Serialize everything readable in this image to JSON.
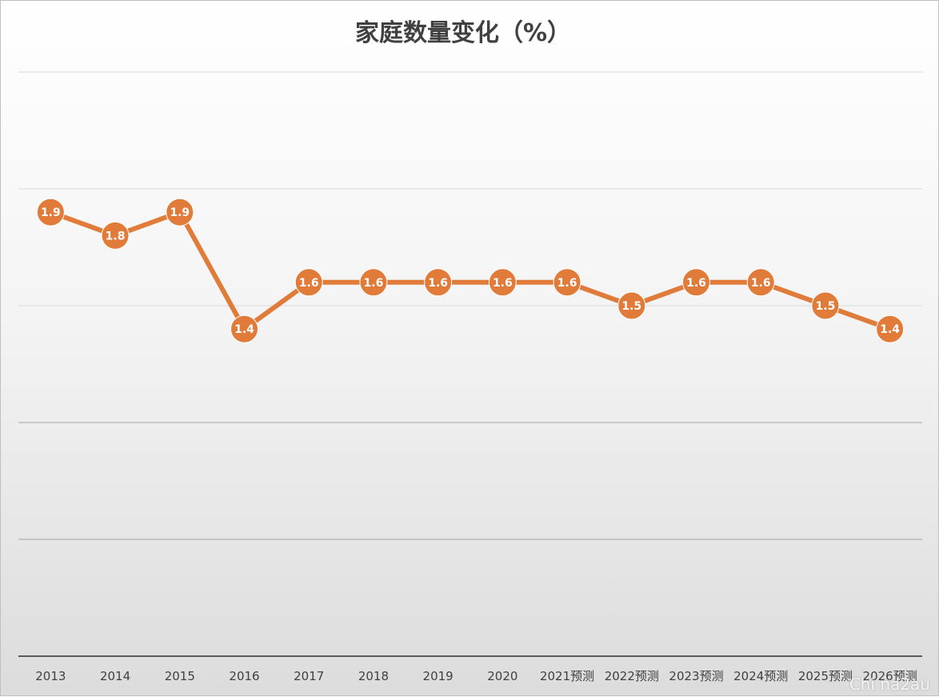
{
  "chart_data": {
    "type": "line",
    "title": "家庭数量变化（%）",
    "categories": [
      "2013",
      "2014",
      "2015",
      "2016",
      "2017",
      "2018",
      "2019",
      "2020",
      "2021预测",
      "2022预测",
      "2023预测",
      "2024预测",
      "2025预测",
      "2026预测"
    ],
    "series": [
      {
        "values": [
          1.9,
          1.8,
          1.9,
          1.4,
          1.6,
          1.6,
          1.6,
          1.6,
          1.6,
          1.5,
          1.6,
          1.6,
          1.5,
          1.4
        ],
        "labels": [
          "1.9",
          "1.8",
          "1.9",
          "1.4",
          "1.6",
          "1.6",
          "1.6",
          "1.6",
          "1.6",
          "1.5",
          "1.6",
          "1.6",
          "1.5",
          "1.4"
        ],
        "color": "#e07b39"
      }
    ],
    "xlabel": "",
    "ylabel": "",
    "ylim": [
      0,
      2.5
    ],
    "grid": true,
    "legend": "none",
    "data_labels": "inside-markers"
  },
  "watermark": "Chi na2au"
}
